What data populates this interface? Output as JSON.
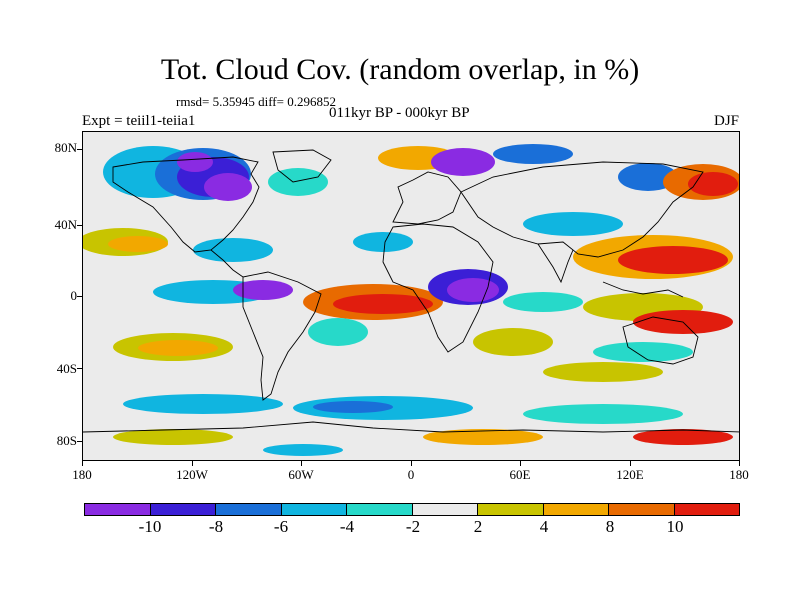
{
  "title": "Tot. Cloud Cov. (random overlap, in %)",
  "stats_text": "rmsd= 5.35945  diff= 0.296852",
  "experiment": "Expt = teiil1-teiia1",
  "period": "011kyr BP - 000kyr BP",
  "season": "DJF",
  "map": {
    "longitude_ticks": [
      "180",
      "120W",
      "60W",
      "0",
      "60E",
      "120E",
      "180"
    ],
    "latitude_ticks": [
      "80N",
      "40N",
      "0",
      "40S",
      "80S"
    ],
    "ocean_land_background": "#ebebeb"
  },
  "colorbar": {
    "levels": [
      "-10",
      "-8",
      "-6",
      "-4",
      "-2",
      "2",
      "4",
      "8",
      "10"
    ],
    "colors": [
      "#8a2be2",
      "#3b1fd6",
      "#1a6fd8",
      "#10b5e0",
      "#27d9c9",
      "#ebebeb",
      "#c8c400",
      "#f2a800",
      "#e86a00",
      "#e11d0e"
    ]
  }
}
